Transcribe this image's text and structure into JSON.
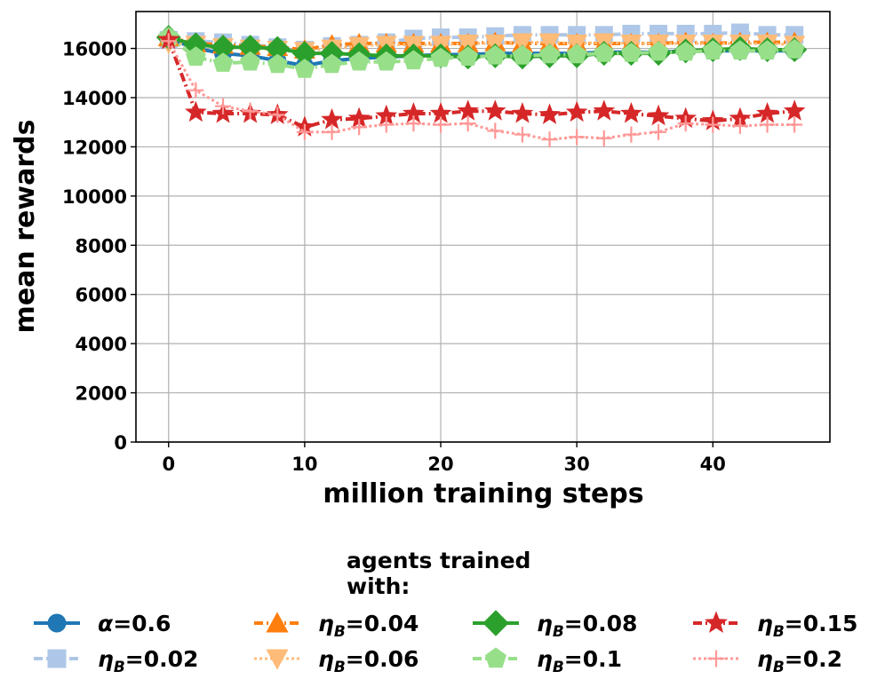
{
  "chart_data": {
    "type": "line",
    "title": "",
    "xlabel": "million training steps",
    "ylabel": "mean rewards",
    "xlim": [
      -2.4,
      48.6
    ],
    "ylim": [
      0,
      17500
    ],
    "xticks": [
      0,
      10,
      20,
      30,
      40
    ],
    "yticks": [
      0,
      2000,
      4000,
      6000,
      8000,
      10000,
      12000,
      14000,
      16000
    ],
    "grid": true,
    "legend_title": "agents trained\nwith:",
    "legend_position": "below",
    "x": [
      0,
      2,
      4,
      6,
      8,
      10,
      12,
      14,
      16,
      18,
      20,
      22,
      24,
      26,
      28,
      30,
      32,
      34,
      36,
      38,
      40,
      42,
      44,
      46
    ],
    "series": [
      {
        "name": "α=0.6",
        "symbol": "α",
        "sub": "",
        "value": "=0.6",
        "color": "#1f77b4",
        "marker": "circle",
        "dash": "solid",
        "values": [
          16400,
          16000,
          15800,
          15700,
          15500,
          15300,
          15500,
          15600,
          15650,
          15700,
          15750,
          15750,
          15800,
          15800,
          15800,
          15800,
          15850,
          15850,
          15850,
          15900,
          15900,
          15900,
          15900,
          15900
        ]
      },
      {
        "name": "ηB=0.02",
        "symbol": "η",
        "sub": "B",
        "value": "=0.02",
        "color": "#aec7e8",
        "marker": "square",
        "dash": "dashdot",
        "values": [
          16350,
          16300,
          16250,
          16150,
          16050,
          15950,
          16100,
          16150,
          16250,
          16400,
          16450,
          16450,
          16500,
          16550,
          16550,
          16550,
          16550,
          16600,
          16600,
          16600,
          16600,
          16650,
          16550,
          16550
        ]
      },
      {
        "name": "ηB=0.04",
        "symbol": "η",
        "sub": "B",
        "value": "=0.04",
        "color": "#ff7f0e",
        "marker": "triangle-up",
        "dash": "dashdot",
        "values": [
          16450,
          16200,
          16150,
          16100,
          16050,
          15950,
          16150,
          16200,
          16200,
          16200,
          16200,
          16200,
          16250,
          16200,
          16200,
          16200,
          16200,
          16200,
          16200,
          16250,
          16200,
          16250,
          16250,
          16250
        ]
      },
      {
        "name": "ηB=0.06",
        "symbol": "η",
        "sub": "B",
        "value": "=0.06",
        "color": "#ffbb78",
        "marker": "triangle-down",
        "dash": "dotted",
        "values": [
          16200,
          16150,
          16050,
          16000,
          15950,
          15900,
          16000,
          16100,
          16150,
          16150,
          16150,
          16200,
          16200,
          16250,
          16250,
          16200,
          16250,
          16200,
          16200,
          16200,
          16200,
          16200,
          16200,
          16150
        ]
      },
      {
        "name": "ηB=0.08",
        "symbol": "η",
        "sub": "B",
        "value": "=0.08",
        "color": "#2ca02c",
        "marker": "diamond",
        "dash": "solid",
        "values": [
          16450,
          16150,
          16050,
          16050,
          16000,
          15800,
          15800,
          15750,
          15700,
          15700,
          15700,
          15650,
          15700,
          15650,
          15700,
          15700,
          15800,
          15800,
          15800,
          15900,
          15950,
          16000,
          15950,
          15950
        ]
      },
      {
        "name": "ηB=0.1",
        "symbol": "η",
        "sub": "B",
        "value": "=0.1",
        "color": "#98df8a",
        "marker": "pentagon",
        "dash": "dashdot",
        "values": [
          16450,
          15650,
          15400,
          15450,
          15350,
          15150,
          15350,
          15450,
          15450,
          15500,
          15600,
          15650,
          15700,
          15700,
          15750,
          15750,
          15800,
          15800,
          15850,
          15850,
          15900,
          15900,
          15900,
          15950
        ]
      },
      {
        "name": "ηB=0.15",
        "symbol": "η",
        "sub": "B",
        "value": "=0.15",
        "color": "#d62728",
        "marker": "star",
        "dash": "dashdot",
        "values": [
          16350,
          13400,
          13350,
          13350,
          13300,
          12800,
          13100,
          13150,
          13250,
          13350,
          13350,
          13450,
          13450,
          13350,
          13300,
          13400,
          13450,
          13350,
          13250,
          13150,
          13050,
          13150,
          13350,
          13450
        ]
      },
      {
        "name": "ηB=0.2",
        "symbol": "η",
        "sub": "B",
        "value": "=0.2",
        "color": "#ff9896",
        "marker": "plus",
        "dash": "dotted",
        "values": [
          16300,
          14300,
          13650,
          13450,
          13300,
          12600,
          12600,
          12800,
          12900,
          12950,
          12900,
          12950,
          12650,
          12500,
          12300,
          12400,
          12350,
          12500,
          12600,
          12950,
          12900,
          12850,
          12900,
          12900
        ]
      }
    ]
  }
}
